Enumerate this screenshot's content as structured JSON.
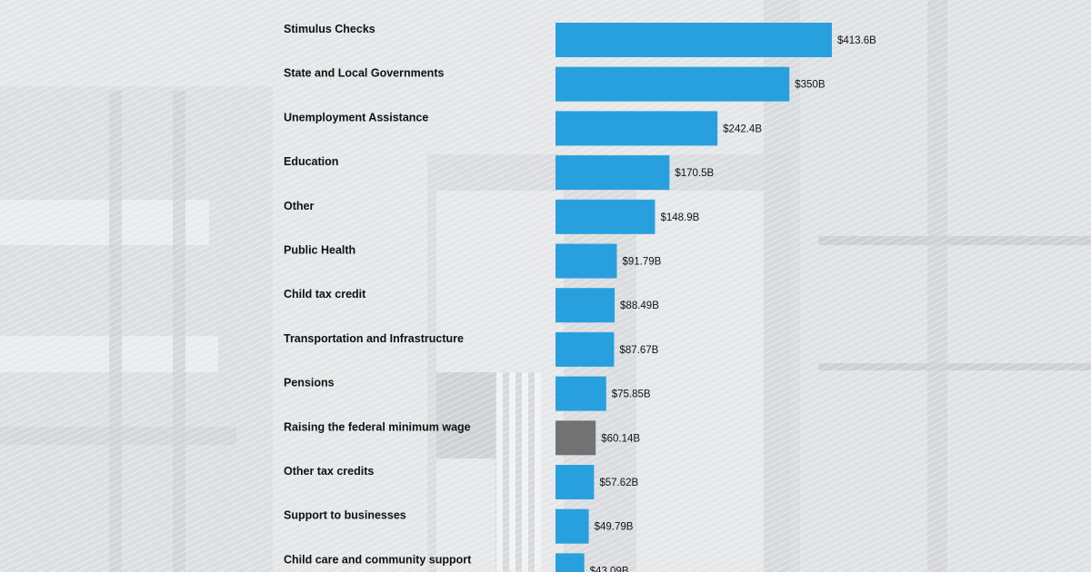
{
  "chart_data": {
    "type": "bar",
    "orientation": "horizontal",
    "categories": [
      "Stimulus Checks",
      "State and Local Governments",
      "Unemployment Assistance",
      "Education",
      "Other",
      "Public Health",
      "Child tax credit",
      "Transportation and Infrastructure",
      "Pensions",
      "Raising the federal minimum wage",
      "Other tax credits",
      "Support to businesses",
      "Child care and community support"
    ],
    "values": [
      413.6,
      350,
      242.4,
      170.5,
      148.9,
      91.79,
      88.49,
      87.67,
      75.85,
      60.14,
      57.62,
      49.79,
      43.09
    ],
    "value_labels": [
      "$413.6B",
      "$350B",
      "$242.4B",
      "$170.5B",
      "$148.9B",
      "$91.79B",
      "$88.49B",
      "$87.67B",
      "$75.85B",
      "$60.14B",
      "$57.62B",
      "$49.79B",
      "$43.09B"
    ],
    "unit": "$B",
    "highlight_index": 9,
    "colors": {
      "bar": "#29a0de",
      "highlight": "#727272",
      "text": "#111111",
      "background": "#e6e8ea"
    },
    "grid": false,
    "legend": "none"
  }
}
